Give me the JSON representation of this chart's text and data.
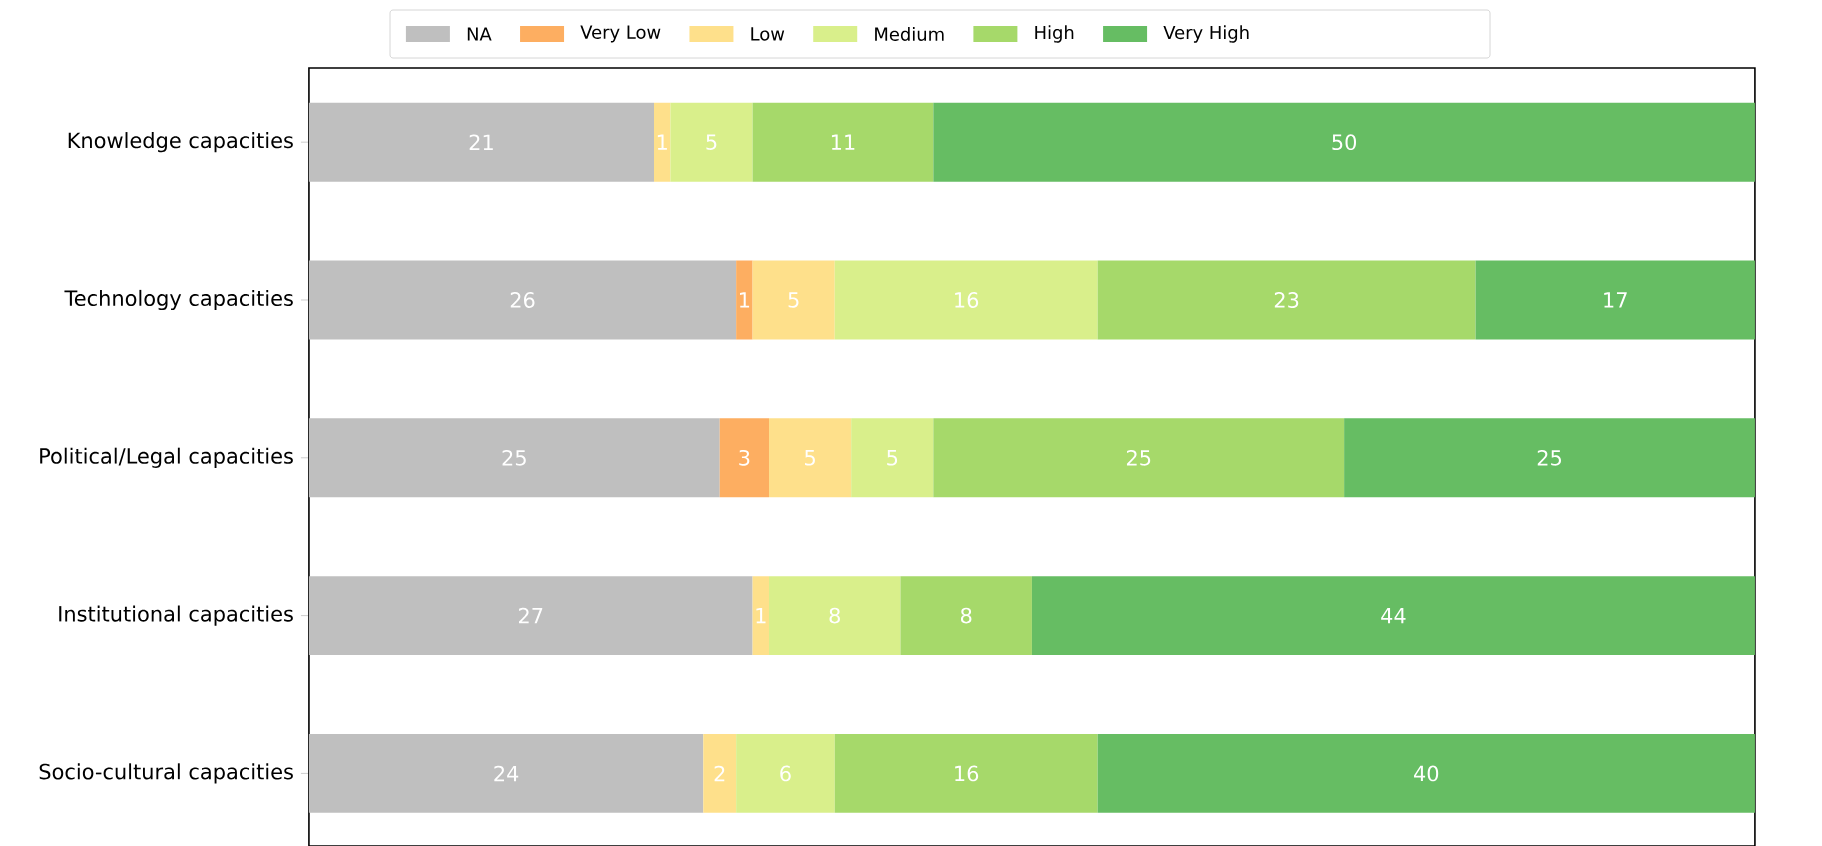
{
  "chart_data": {
    "type": "bar",
    "orientation": "horizontal",
    "stacked": true,
    "data_labels": true,
    "legend": "top",
    "xlim": [
      0,
      88
    ],
    "tick_labels": "y",
    "categories": [
      "Knowledge capacities",
      "Technology capacities",
      "Political/Legal capacities",
      "Institutional capacities",
      "Socio-cultural capacities"
    ],
    "series": [
      {
        "name": "NA",
        "color": "#bfbfbf",
        "values": [
          21,
          26,
          25,
          27,
          24
        ]
      },
      {
        "name": "Very Low",
        "color": "#fdae61",
        "values": [
          null,
          1,
          3,
          null,
          null
        ]
      },
      {
        "name": "Low",
        "color": "#fee08b",
        "values": [
          1,
          5,
          5,
          1,
          2
        ]
      },
      {
        "name": "Medium",
        "color": "#d9ef8b",
        "values": [
          5,
          16,
          5,
          8,
          6
        ]
      },
      {
        "name": "High",
        "color": "#a6d96a",
        "values": [
          11,
          23,
          25,
          8,
          16
        ]
      },
      {
        "name": "Very High",
        "color": "#66bd63",
        "values": [
          50,
          17,
          25,
          44,
          40
        ]
      }
    ]
  }
}
